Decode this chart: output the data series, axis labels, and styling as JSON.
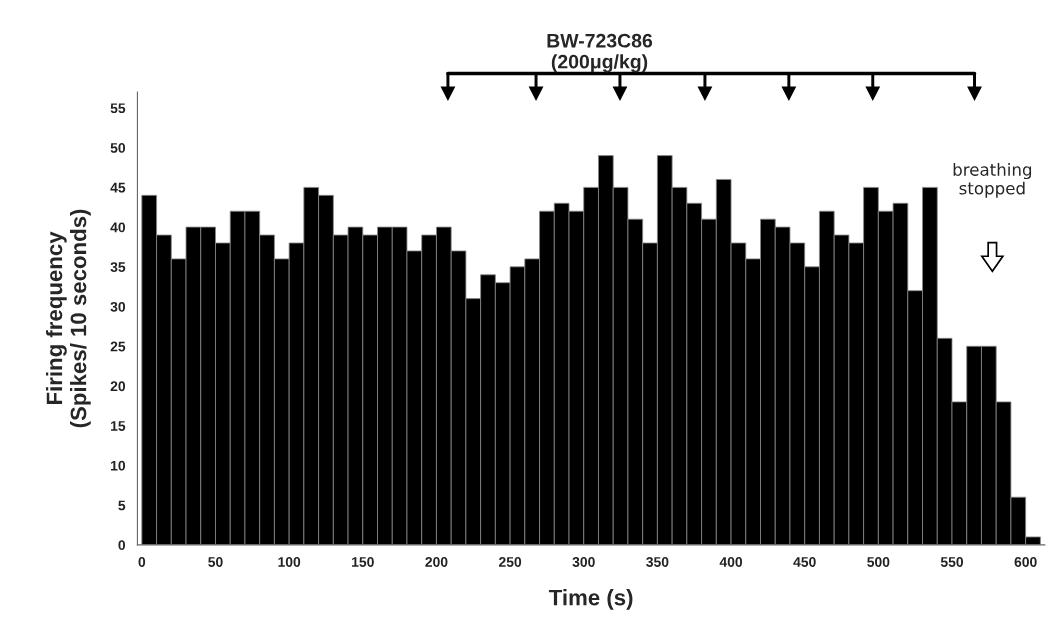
{
  "chart_data": {
    "type": "histogram",
    "title": "BW-723C86\n(200μg/kg)",
    "xlabel": "Time (s)",
    "ylabel": "Firing frequency\n(Spikes/ 10 seconds)",
    "bins": [
      0,
      10,
      20,
      30,
      40,
      50,
      60,
      70,
      80,
      90,
      100,
      110,
      120,
      130,
      140,
      150,
      160,
      170,
      180,
      190,
      200,
      210,
      220,
      230,
      240,
      250,
      260,
      270,
      280,
      290,
      300,
      310,
      320,
      330,
      340,
      350,
      360,
      370,
      380,
      390,
      400,
      410,
      420,
      430,
      440,
      450,
      460,
      470,
      480,
      490,
      500,
      510,
      520,
      530,
      540,
      550,
      560,
      570,
      580,
      590,
      600,
      610
    ],
    "values": [
      44,
      39,
      36,
      40,
      40,
      38,
      42,
      42,
      39,
      36,
      38,
      45,
      44,
      39,
      40,
      39,
      40,
      40,
      37,
      39,
      40,
      37,
      31,
      34,
      33,
      35,
      36,
      42,
      43,
      42,
      45,
      49,
      45,
      41,
      38,
      49,
      45,
      43,
      41,
      46,
      38,
      36,
      41,
      40,
      38,
      35,
      42,
      39,
      38,
      45,
      42,
      43,
      32,
      45,
      26,
      18,
      25,
      25,
      18,
      6,
      1
    ],
    "color": "#000000",
    "xlim": [
      -3,
      613
    ],
    "ylim": [
      0,
      57
    ],
    "xticks": [
      0,
      50,
      100,
      150,
      200,
      250,
      300,
      350,
      400,
      450,
      500,
      550,
      600
    ],
    "yticks": [
      0,
      5,
      10,
      15,
      20,
      25,
      30,
      35,
      40,
      45,
      50,
      55
    ],
    "grid": false,
    "annotations": [
      "breathing\nstopped"
    ]
  }
}
